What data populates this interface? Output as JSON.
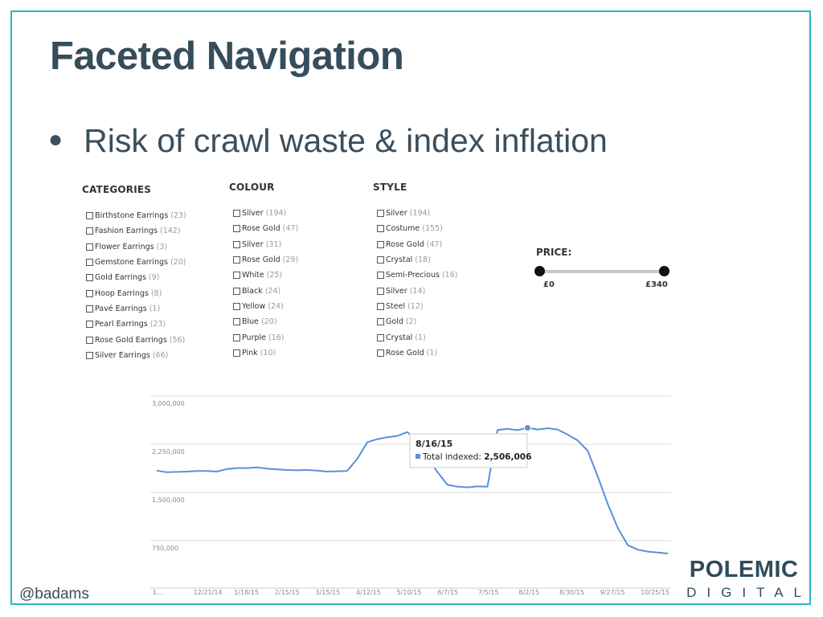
{
  "slide": {
    "title": "Faceted Navigation",
    "bullet": "Risk of crawl waste & index inflation",
    "handle": "@badams"
  },
  "logo": {
    "line1": "POLEMIC",
    "line2": "DIGITAL"
  },
  "facets": {
    "categories": {
      "header": "CATEGORIES",
      "items": [
        {
          "label": "Birthstone Earrings",
          "count": "(23)"
        },
        {
          "label": "Fashion Earrings",
          "count": "(142)"
        },
        {
          "label": "Flower Earrings",
          "count": "(3)"
        },
        {
          "label": "Gemstone Earrings",
          "count": "(20)"
        },
        {
          "label": "Gold Earrings",
          "count": "(9)"
        },
        {
          "label": "Hoop Earrings",
          "count": "(8)"
        },
        {
          "label": "Pavé Earrings",
          "count": "(1)"
        },
        {
          "label": "Pearl Earrings",
          "count": "(23)"
        },
        {
          "label": "Rose Gold Earrings",
          "count": "(56)"
        },
        {
          "label": "Silver Earrings",
          "count": "(66)"
        }
      ]
    },
    "colour": {
      "header": "COLOUR",
      "items": [
        {
          "label": "Silver",
          "count": "(194)"
        },
        {
          "label": "Rose Gold",
          "count": "(47)"
        },
        {
          "label": "Silver",
          "count": "(31)"
        },
        {
          "label": "Rose Gold",
          "count": "(29)"
        },
        {
          "label": "White",
          "count": "(25)"
        },
        {
          "label": "Black",
          "count": "(24)"
        },
        {
          "label": "Yellow",
          "count": "(24)"
        },
        {
          "label": "Blue",
          "count": "(20)"
        },
        {
          "label": "Purple",
          "count": "(16)"
        },
        {
          "label": "Pink",
          "count": "(10)"
        }
      ]
    },
    "style": {
      "header": "STYLE",
      "items": [
        {
          "label": "Silver",
          "count": "(194)"
        },
        {
          "label": "Costume",
          "count": "(155)"
        },
        {
          "label": "Rose Gold",
          "count": "(47)"
        },
        {
          "label": "Crystal",
          "count": "(18)"
        },
        {
          "label": "Semi-Precious",
          "count": "(16)"
        },
        {
          "label": "Silver",
          "count": "(14)"
        },
        {
          "label": "Steel",
          "count": "(12)"
        },
        {
          "label": "Gold",
          "count": "(2)"
        },
        {
          "label": "Crystal",
          "count": "(1)"
        },
        {
          "label": "Rose Gold",
          "count": "(1)"
        }
      ]
    },
    "price": {
      "header": "PRICE:",
      "min": "£0",
      "max": "£340",
      "range": [
        0,
        1
      ]
    }
  },
  "chart_data": {
    "type": "line",
    "title": "",
    "xlabel": "",
    "ylabel": "",
    "ylim": [
      0,
      3000000
    ],
    "yticks": [
      "3,000,000",
      "2,250,000",
      "1,500,000",
      "750,000"
    ],
    "ytick_values": [
      3000000,
      2250000,
      1500000,
      750000
    ],
    "xtick_labels": [
      "1...",
      "12/21/14",
      "1/18/15",
      "2/15/15",
      "3/15/15",
      "4/12/15",
      "5/10/15",
      "6/7/15",
      "7/5/15",
      "8/2/15",
      "8/30/15",
      "9/27/15",
      "10/25/15"
    ],
    "series": [
      {
        "name": "Total indexed",
        "color": "#5b8fdb",
        "values": [
          1840000,
          1815000,
          1820000,
          1825000,
          1835000,
          1835000,
          1825000,
          1865000,
          1880000,
          1880000,
          1890000,
          1870000,
          1860000,
          1850000,
          1845000,
          1850000,
          1840000,
          1825000,
          1830000,
          1835000,
          2020000,
          2280000,
          2330000,
          2360000,
          2380000,
          2440000,
          2300000,
          2050000,
          1820000,
          1620000,
          1590000,
          1580000,
          1595000,
          1590000,
          2470000,
          2490000,
          2470000,
          2506006,
          2480000,
          2500000,
          2480000,
          2400000,
          2310000,
          2150000,
          1750000,
          1320000,
          950000,
          680000,
          610000,
          580000,
          565000,
          550000
        ],
        "highlight_index": 37
      }
    ],
    "tooltip": {
      "date": "8/16/15",
      "label": "Total indexed:",
      "value": "2,506,006"
    },
    "grid": true
  }
}
